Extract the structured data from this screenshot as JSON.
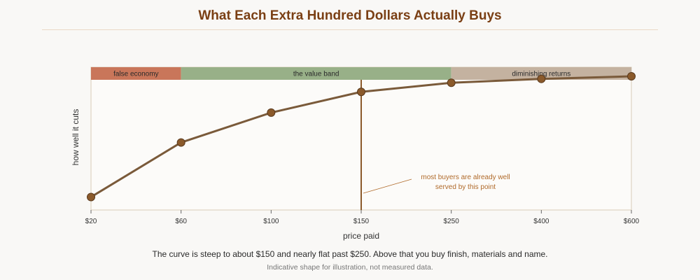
{
  "chart_data": {
    "type": "line",
    "title": "What Each Extra Hundred Dollars Actually Buys",
    "xlabel": "price paid",
    "ylabel": "how well it cuts",
    "categories": [
      "$20",
      "$60",
      "$100",
      "$150",
      "$250",
      "$400",
      "$600"
    ],
    "series": [
      {
        "values": [
          0.1,
          0.52,
          0.75,
          0.91,
          0.98,
          1.01,
          1.03
        ]
      }
    ],
    "ylim": [
      0,
      1.1
    ],
    "bands": [
      {
        "label": "false economy",
        "from": "$20",
        "to": "$60",
        "color": "#c9765a"
      },
      {
        "label": "the value band",
        "from": "$60",
        "to": "$250",
        "color": "#98b088"
      },
      {
        "label": "diminishing returns",
        "from": "$250",
        "to": "$600",
        "color": "#c4b2a0"
      }
    ],
    "marker_line": {
      "at": "$150",
      "color": "#8b5a2b"
    },
    "annotation": "most buyers are already well served by this point",
    "colors": {
      "line": "#7a5a3a",
      "marker": "#8b5a2b",
      "title": "#7a3f14",
      "annotation": "#b06a2a"
    }
  },
  "caption": "The curve is steep to about $150 and nearly flat past $250. Above that you buy finish, materials and name.",
  "note": "Indicative shape for illustration, not measured data."
}
